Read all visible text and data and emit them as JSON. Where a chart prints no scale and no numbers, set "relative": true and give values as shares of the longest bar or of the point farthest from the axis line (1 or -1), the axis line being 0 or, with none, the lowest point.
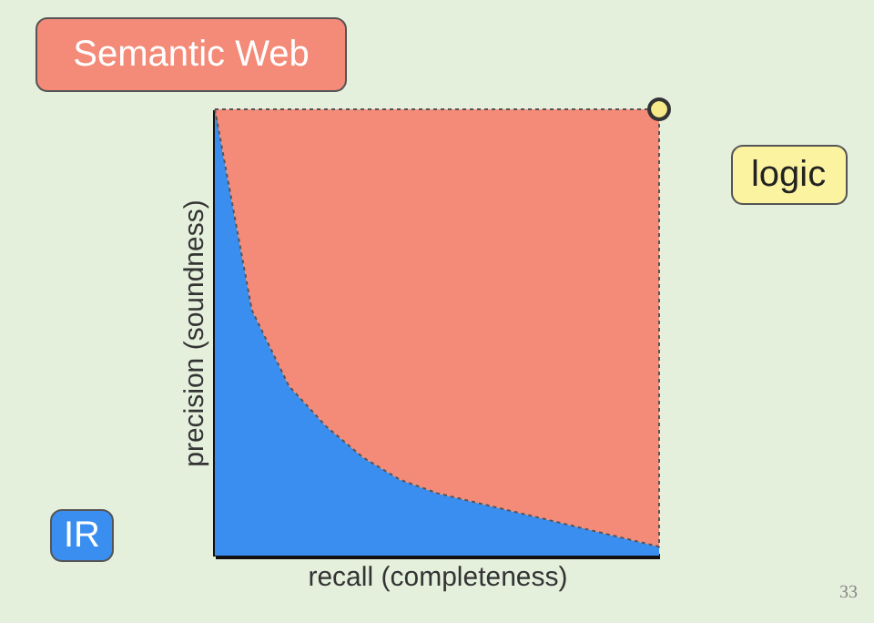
{
  "chart_data": {
    "type": "area",
    "relative": true,
    "stacked": true,
    "xlabel": "recall (completeness)",
    "ylabel": "precision (soundness)",
    "categories": [
      null,
      null,
      null,
      null,
      null,
      null,
      null,
      null,
      null,
      null,
      null,
      null,
      null
    ],
    "series": [
      {
        "name": "IR",
        "color": "#3a8ef0",
        "values": [
          1.0,
          0.55,
          0.38,
          0.29,
          0.22,
          0.17,
          0.14,
          0.12,
          0.1,
          0.08,
          0.06,
          0.04,
          0.02
        ]
      },
      {
        "name": "Semantic Web",
        "color": "#f48a78",
        "values": [
          0.0,
          0.45,
          0.62,
          0.71,
          0.78,
          0.83,
          0.86,
          0.88,
          0.9,
          0.92,
          0.94,
          0.96,
          0.98
        ]
      }
    ],
    "annotations": [
      "logic",
      "33"
    ]
  }
}
